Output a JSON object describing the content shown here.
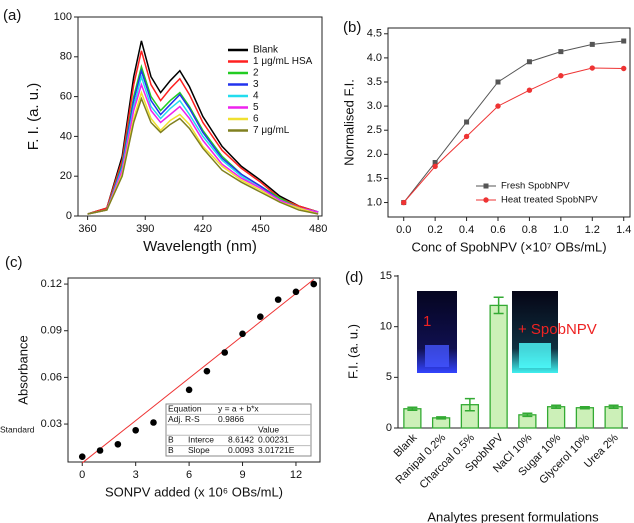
{
  "chart_data": [
    {
      "type": "line",
      "label": "(a)",
      "xlabel": "Wavelength (nm)",
      "ylabel": "F. I. (a. u.)",
      "x": [
        360,
        370,
        378,
        384,
        388,
        393,
        398,
        403,
        408,
        413,
        420,
        430,
        440,
        450,
        460,
        470,
        480
      ],
      "series": [
        {
          "name": "Blank",
          "color": "#000000",
          "values": [
            1,
            4,
            30,
            70,
            88,
            70,
            62,
            68,
            73,
            65,
            50,
            35,
            25,
            18,
            10,
            5,
            2
          ]
        },
        {
          "name": "1 μg/mL HSA",
          "color": "#ff2020",
          "values": [
            1,
            4,
            28,
            66,
            83,
            66,
            58,
            64,
            69,
            61,
            47,
            33,
            24,
            17,
            9,
            5,
            2
          ]
        },
        {
          "name": "2",
          "color": "#22cc22",
          "values": [
            1,
            3,
            26,
            60,
            75,
            60,
            53,
            58,
            62,
            55,
            43,
            30,
            21,
            15,
            9,
            4,
            2
          ]
        },
        {
          "name": "3",
          "color": "#2233ee",
          "values": [
            1,
            3,
            25,
            58,
            73,
            58,
            51,
            56,
            61,
            54,
            42,
            29,
            21,
            15,
            8,
            4,
            2
          ]
        },
        {
          "name": "4",
          "color": "#22ddee",
          "values": [
            1,
            3,
            24,
            55,
            70,
            55,
            49,
            54,
            58,
            51,
            40,
            28,
            20,
            14,
            8,
            4,
            2
          ]
        },
        {
          "name": "5",
          "color": "#ee22ee",
          "values": [
            1,
            3,
            23,
            53,
            66,
            53,
            47,
            51,
            55,
            49,
            38,
            26,
            19,
            14,
            8,
            4,
            2
          ]
        },
        {
          "name": "6",
          "color": "#f0e030",
          "values": [
            1,
            3,
            21,
            49,
            62,
            49,
            43,
            48,
            51,
            46,
            35,
            25,
            18,
            13,
            7,
            4,
            1
          ]
        },
        {
          "name": "7 μg/mL",
          "color": "#808020",
          "values": [
            1,
            3,
            20,
            47,
            59,
            47,
            42,
            46,
            49,
            44,
            34,
            23,
            17,
            12,
            7,
            3,
            1
          ]
        }
      ],
      "xlim": [
        355,
        482
      ],
      "ylim": [
        0,
        100
      ],
      "xticks": [
        360,
        390,
        420,
        450,
        480
      ],
      "yticks": [
        0,
        20,
        40,
        60,
        80,
        100
      ]
    },
    {
      "type": "line",
      "label": "(b)",
      "xlabel": "Conc of SpobNPV (×10⁷ OBs/mL)",
      "ylabel": "Normalised F.I.",
      "x": [
        0,
        0.2,
        0.4,
        0.6,
        0.8,
        1.0,
        1.2,
        1.4
      ],
      "series": [
        {
          "name": "Fresh SpobNPV",
          "color": "#555555",
          "marker": "square",
          "values": [
            1.0,
            1.83,
            2.67,
            3.5,
            3.92,
            4.13,
            4.28,
            4.35
          ]
        },
        {
          "name": "Heat treated SpobNPV",
          "color": "#ee3333",
          "marker": "circle",
          "values": [
            1.0,
            1.75,
            2.37,
            3.0,
            3.33,
            3.63,
            3.79,
            3.78
          ]
        }
      ],
      "xlim": [
        -0.1,
        1.44
      ],
      "ylim": [
        0.7,
        4.62
      ],
      "xticks": [
        {
          "value": 0,
          "label": "0.0"
        },
        0.2,
        0.4,
        0.6,
        0.8,
        {
          "value": 1,
          "label": "1.0"
        },
        1.2,
        1.4
      ],
      "yticks": [
        {
          "value": 1,
          "label": "1.0"
        },
        1.5,
        {
          "value": 2,
          "label": "2.0"
        },
        2.5,
        {
          "value": 3,
          "label": "3.0"
        },
        3.5,
        {
          "value": 4,
          "label": "4.0"
        },
        4.5
      ]
    },
    {
      "type": "scatter",
      "label": "(c)",
      "xlabel": "SONPV added (x 10⁶ OBs/mL)",
      "ylabel": "Absorbance",
      "x": [
        0,
        1,
        2,
        3,
        4,
        5,
        6,
        7,
        8,
        9,
        10,
        11,
        12,
        13
      ],
      "values": [
        0.009,
        0.013,
        0.017,
        0.026,
        0.031,
        0.036,
        0.052,
        0.064,
        0.076,
        0.088,
        0.099,
        0.11,
        0.115,
        0.12
      ],
      "color": "#000000",
      "fit_line": {
        "color": "#ee3333",
        "x": [
          0,
          13
        ],
        "values": [
          0.005,
          0.123
        ]
      },
      "inset_table": [
        [
          "Equation",
          "y = a + b*x",
          ""
        ],
        [
          "Adj. R-S",
          "0.9866",
          ""
        ],
        [
          "",
          "Value",
          "Standard"
        ],
        [
          "B",
          "Interce",
          "8.6142",
          "0.00231"
        ],
        [
          "B",
          "Slope",
          "0.0093",
          "3.01721E"
        ]
      ],
      "xlim": [
        -0.8,
        13.35
      ],
      "ylim": [
        0.0056,
        0.1239
      ],
      "xticks": [
        0,
        3,
        6,
        9,
        12
      ],
      "yticks": [
        0.03,
        0.06,
        0.09,
        0.12
      ]
    },
    {
      "type": "bar",
      "label": "(d)",
      "xlabel": "Analytes present formulations",
      "ylabel": "F.I. (a. u.)",
      "categories": [
        "Blank",
        "Ranipal 0.2%",
        "Charcoal 0.5%",
        "SpobNPV",
        "NaCl 10%",
        "Sugar 10%",
        "Glycerol 10%",
        "Urea 2%"
      ],
      "values": [
        1.9,
        1.0,
        2.3,
        12.1,
        1.3,
        2.1,
        2.0,
        2.1
      ],
      "errors": [
        0.15,
        0.1,
        0.6,
        0.8,
        0.15,
        0.15,
        0.1,
        0.15
      ],
      "color": "#ccf0b8",
      "edge_color": "#33aa33",
      "inset_labels": [
        "1",
        "+ SpobNPV"
      ],
      "ylim": [
        0,
        15.1
      ],
      "yticks": [
        0,
        5,
        10,
        15
      ]
    }
  ]
}
